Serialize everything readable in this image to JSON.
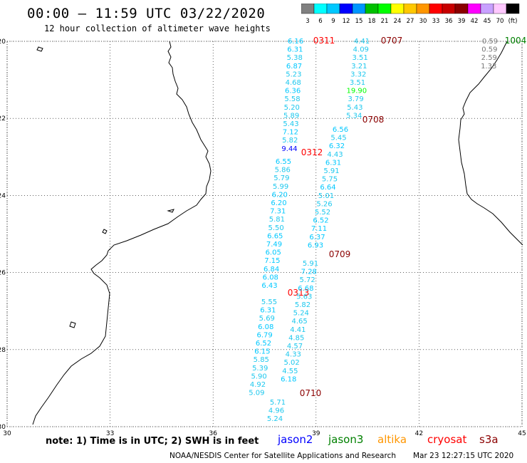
{
  "title": "00:00 – 11:59 UTC 03/22/2020",
  "subtitle": "12 hour collection of altimeter wave heights",
  "colorbar": {
    "colors": [
      "#808080",
      "#00ffff",
      "#00c8ff",
      "#0000ff",
      "#0096ff",
      "#00c000",
      "#00ff00",
      "#ffff00",
      "#ffc800",
      "#ff9600",
      "#ff0000",
      "#c80000",
      "#8b0000",
      "#ff00ff",
      "#c8a0ff",
      "#ffc8ff",
      "#000000"
    ],
    "labels": [
      "3",
      "6",
      "9",
      "12",
      "15",
      "18",
      "21",
      "24",
      "27",
      "30",
      "33",
      "36",
      "39",
      "42",
      "45",
      "70",
      "(ft)"
    ]
  },
  "axes": {
    "lat_labels": [
      "-20",
      "-22",
      "-24",
      "-26",
      "-28",
      "-30"
    ],
    "lon_labels": [
      "30",
      "33",
      "36",
      "39",
      "42",
      "45"
    ],
    "lat_range": [
      -30,
      -20
    ],
    "lon_range": [
      30,
      45
    ]
  },
  "chart_data": {
    "type": "scatter",
    "xlabel": "",
    "ylabel": "",
    "xlim": [
      30,
      45
    ],
    "ylim": [
      -30,
      -20
    ],
    "tracks": [
      {
        "pass": "0311",
        "satellite": "cryosat",
        "values": [
          "6.16",
          "6.31",
          "5.38",
          "6.87",
          "5.23",
          "4.68",
          "6.36",
          "5.58",
          "5.20",
          "5.89",
          "5.43",
          "7.12",
          "5.82",
          "9.44"
        ]
      },
      {
        "pass": "0312",
        "satellite": "cryosat",
        "values": [
          "6.55",
          "5.86",
          "5.79",
          "5.99",
          "6.20",
          "6.20",
          "7.31",
          "5.81",
          "5.50",
          "6.65",
          "7.49",
          "6.05",
          "7.15",
          "6.84",
          "6.08",
          "6.43"
        ]
      },
      {
        "pass": "0313",
        "satellite": "cryosat",
        "values": [
          "5.55",
          "6.31",
          "5.69",
          "6.08",
          "6.79",
          "6.52",
          "6.15",
          "5.85",
          "5.39",
          "5.90",
          "4.92",
          "5.09"
        ]
      },
      {
        "pass": "0707",
        "satellite": "s3a",
        "values": [
          "4.41",
          "4.09",
          "3.51",
          "3.21",
          "3.32",
          "3.51",
          "19.90",
          "3.79",
          "5.43",
          "5.34"
        ]
      },
      {
        "pass": "0708",
        "satellite": "s3a",
        "values": [
          "6.56",
          "5.45",
          "6.32",
          "4.43",
          "6.31",
          "5.91",
          "5.75",
          "6.64",
          "5.01",
          "5.26",
          "5.52",
          "6.52",
          "7.11",
          "6.37",
          "6.93"
        ]
      },
      {
        "pass": "0709",
        "satellite": "s3a",
        "values": [
          "5.91",
          "7.28",
          "5.72",
          "6.68",
          "5.63",
          "5.82",
          "5.24",
          "4.65",
          "4.41",
          "4.85",
          "4.57",
          "4.33",
          "5.02",
          "4.55",
          "6.18"
        ]
      },
      {
        "pass": "0710",
        "satellite": "s3a",
        "values": [
          "5.71",
          "4.96",
          "5.24"
        ]
      },
      {
        "pass": "1004",
        "satellite": "jason3",
        "values": [
          "0.59",
          "0.59",
          "2.59",
          "1.33"
        ]
      }
    ]
  },
  "note": "note: 1) Time is in UTC; 2) SWH is in feet",
  "legend": [
    {
      "name": "jason2",
      "color": "#0000ff"
    },
    {
      "name": "jason3",
      "color": "#008000"
    },
    {
      "name": "altika",
      "color": "#ff9600"
    },
    {
      "name": "cryosat",
      "color": "#ff0000"
    },
    {
      "name": "s3a",
      "color": "#8b0000"
    }
  ],
  "footer": {
    "left": "NOAA/NESDIS Center for Satellite Applications and Research",
    "right": "Mar 23 12:27:15 UTC 2020"
  }
}
